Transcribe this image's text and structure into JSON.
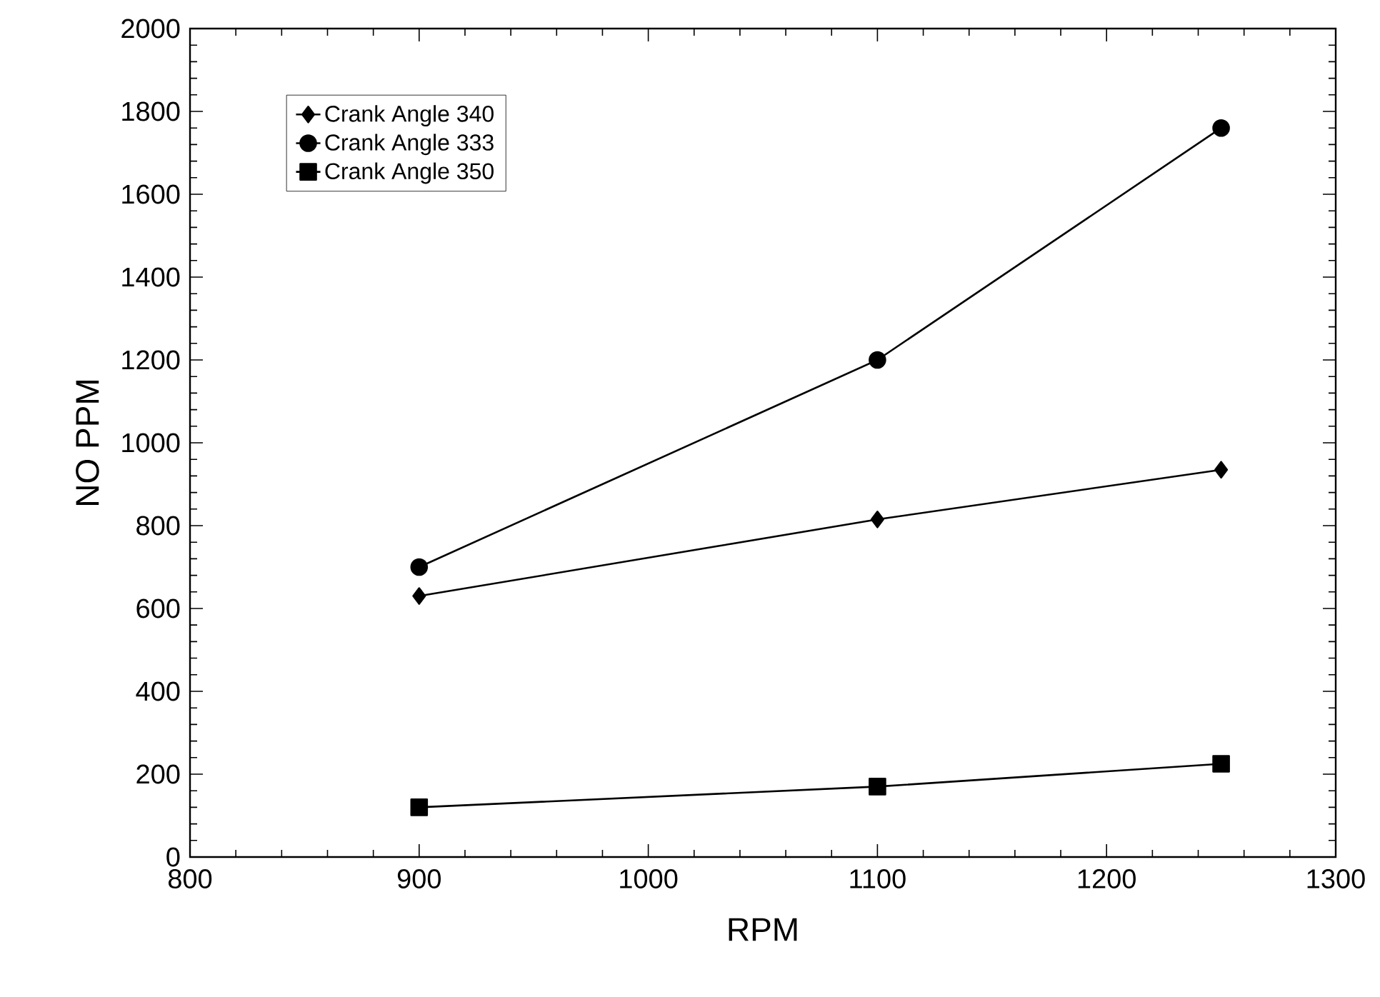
{
  "chart_data": {
    "type": "line",
    "xlabel": "RPM",
    "ylabel": "NO PPM",
    "x": [
      900,
      1100,
      1250
    ],
    "series": [
      {
        "name": "Crank Angle 340",
        "color": "#000000",
        "marker": "diamond",
        "values": [
          630,
          815,
          935
        ]
      },
      {
        "name": "Crank Angle 333",
        "color": "#000000",
        "marker": "circle",
        "values": [
          700,
          1200,
          1760
        ]
      },
      {
        "name": "Crank Angle 350",
        "color": "#000000",
        "marker": "square",
        "values": [
          120,
          170,
          225
        ]
      }
    ],
    "xlim": [
      800,
      1300
    ],
    "xticks": [
      800,
      900,
      1000,
      1100,
      1200,
      1300
    ],
    "ylim": [
      0,
      2000
    ],
    "yticks": [
      0,
      200,
      400,
      600,
      800,
      1000,
      1200,
      1400,
      1600,
      1800,
      2000
    ],
    "grid": false,
    "legend": "top left",
    "line_style": "solid"
  }
}
